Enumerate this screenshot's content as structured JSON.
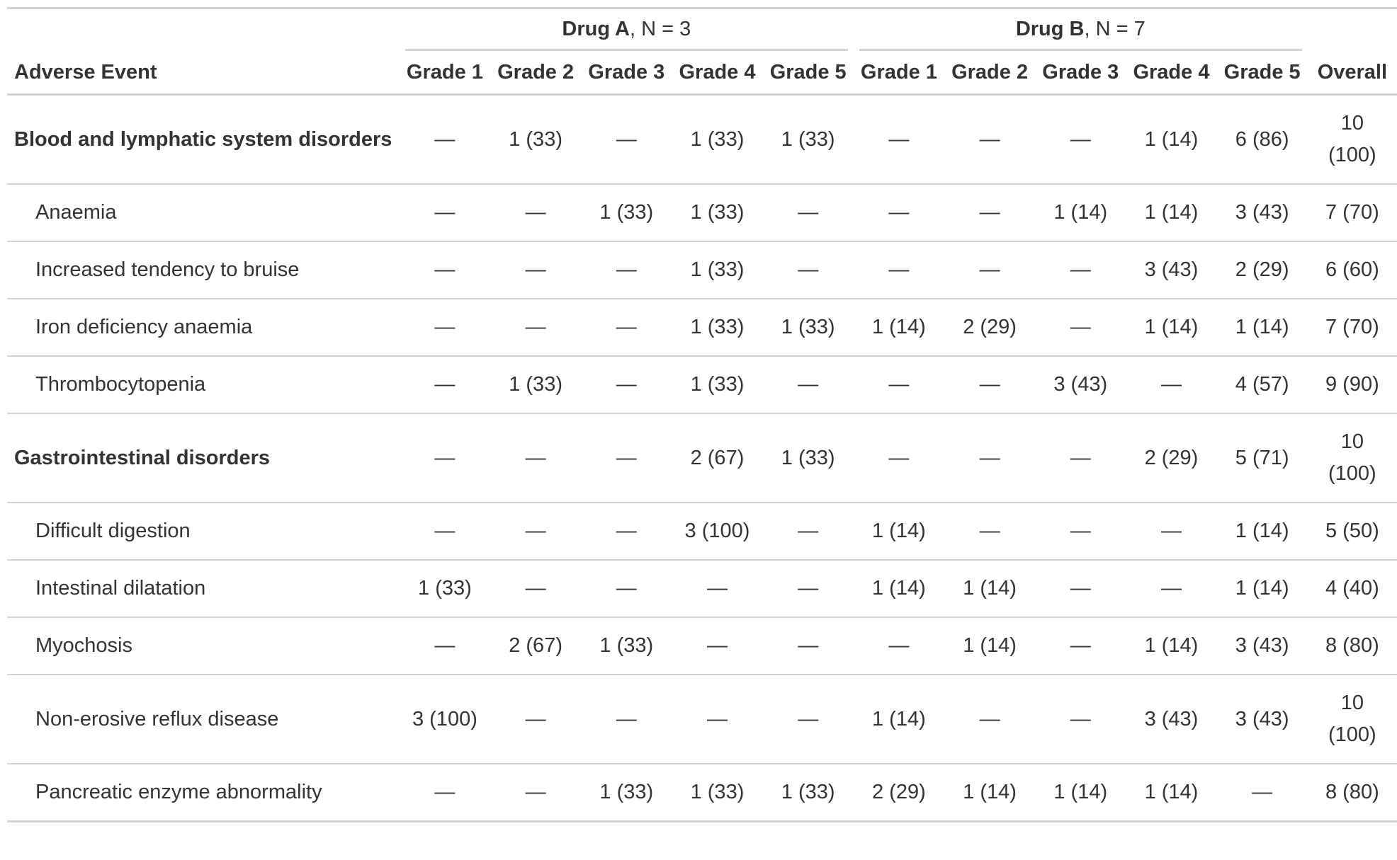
{
  "table": {
    "spanners": [
      {
        "name": "Drug A",
        "detail": ", N = 3"
      },
      {
        "name": "Drug B",
        "detail": ", N = 7"
      }
    ],
    "columns": [
      "Adverse Event",
      "Grade 1",
      "Grade 2",
      "Grade 3",
      "Grade 4",
      "Grade 5",
      "Grade 1",
      "Grade 2",
      "Grade 3",
      "Grade 4",
      "Grade 5",
      "Overall"
    ],
    "rows": [
      {
        "label": "Blood and lymphatic system disorders",
        "bold": true,
        "cells": [
          "—",
          "1 (33)",
          "—",
          "1 (33)",
          "1 (33)",
          "—",
          "—",
          "—",
          "1 (14)",
          "6 (86)",
          "10 (100)"
        ]
      },
      {
        "label": "Anaemia",
        "bold": false,
        "cells": [
          "—",
          "—",
          "1 (33)",
          "1 (33)",
          "—",
          "—",
          "—",
          "1 (14)",
          "1 (14)",
          "3 (43)",
          "7 (70)"
        ]
      },
      {
        "label": "Increased tendency to bruise",
        "bold": false,
        "cells": [
          "—",
          "—",
          "—",
          "1 (33)",
          "—",
          "—",
          "—",
          "—",
          "3 (43)",
          "2 (29)",
          "6 (60)"
        ]
      },
      {
        "label": "Iron deficiency anaemia",
        "bold": false,
        "cells": [
          "—",
          "—",
          "—",
          "1 (33)",
          "1 (33)",
          "1 (14)",
          "2 (29)",
          "—",
          "1 (14)",
          "1 (14)",
          "7 (70)"
        ]
      },
      {
        "label": "Thrombocytopenia",
        "bold": false,
        "cells": [
          "—",
          "1 (33)",
          "—",
          "1 (33)",
          "—",
          "—",
          "—",
          "3 (43)",
          "—",
          "4 (57)",
          "9 (90)"
        ]
      },
      {
        "label": "Gastrointestinal disorders",
        "bold": true,
        "cells": [
          "—",
          "—",
          "—",
          "2 (67)",
          "1 (33)",
          "—",
          "—",
          "—",
          "2 (29)",
          "5 (71)",
          "10 (100)"
        ]
      },
      {
        "label": "Difficult digestion",
        "bold": false,
        "cells": [
          "—",
          "—",
          "—",
          "3 (100)",
          "—",
          "1 (14)",
          "—",
          "—",
          "—",
          "1 (14)",
          "5 (50)"
        ]
      },
      {
        "label": "Intestinal dilatation",
        "bold": false,
        "cells": [
          "1 (33)",
          "—",
          "—",
          "—",
          "—",
          "1 (14)",
          "1 (14)",
          "—",
          "—",
          "1 (14)",
          "4 (40)"
        ]
      },
      {
        "label": "Myochosis",
        "bold": false,
        "cells": [
          "—",
          "2 (67)",
          "1 (33)",
          "—",
          "—",
          "—",
          "1 (14)",
          "—",
          "1 (14)",
          "3 (43)",
          "8 (80)"
        ]
      },
      {
        "label": "Non-erosive reflux disease",
        "bold": false,
        "cells": [
          "3 (100)",
          "—",
          "—",
          "—",
          "—",
          "1 (14)",
          "—",
          "—",
          "3 (43)",
          "3 (43)",
          "10 (100)"
        ]
      },
      {
        "label": "Pancreatic enzyme abnormality",
        "bold": false,
        "cells": [
          "—",
          "—",
          "1 (33)",
          "1 (33)",
          "1 (33)",
          "2 (29)",
          "1 (14)",
          "1 (14)",
          "1 (14)",
          "—",
          "8 (80)"
        ]
      }
    ]
  }
}
